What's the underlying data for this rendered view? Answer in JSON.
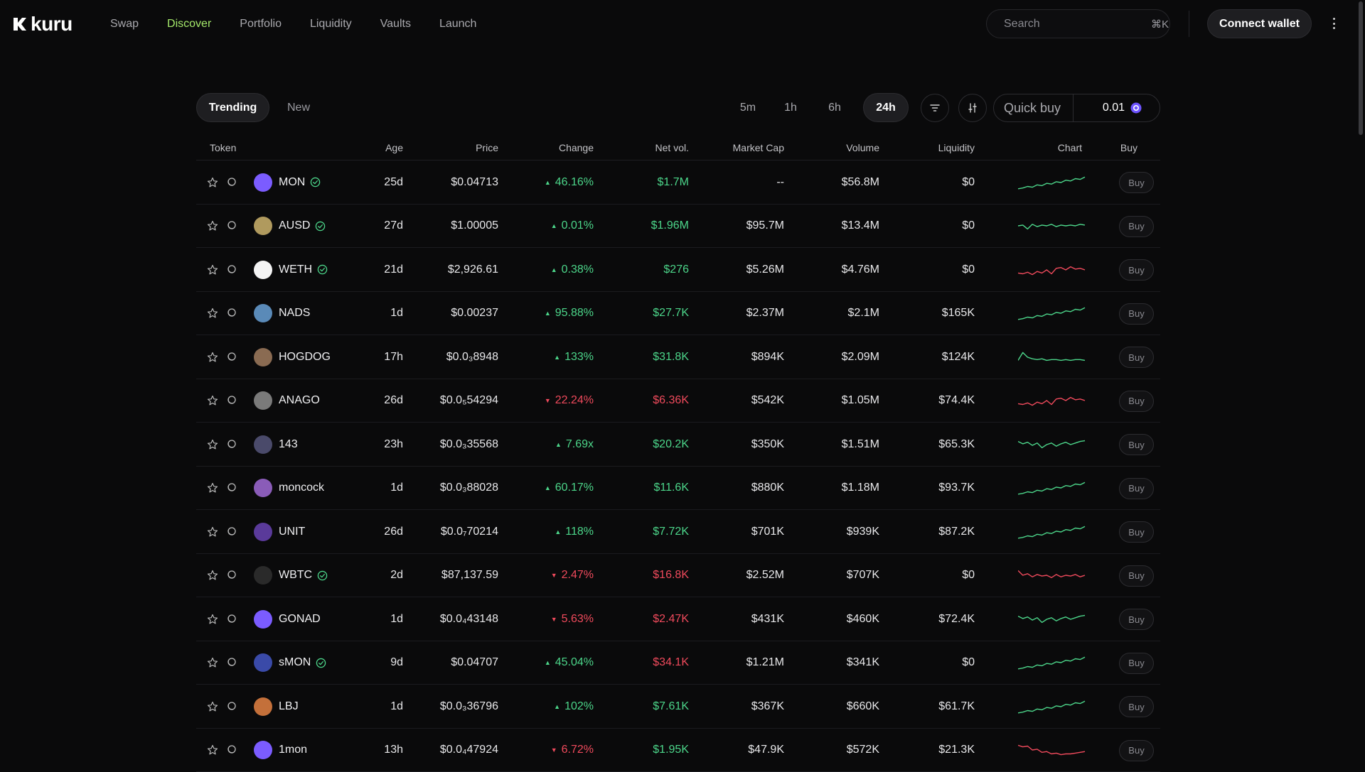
{
  "nav": {
    "logo_text": "kuru",
    "items": [
      "Swap",
      "Discover",
      "Portfolio",
      "Liquidity",
      "Vaults",
      "Launch"
    ],
    "active": "Discover"
  },
  "search": {
    "placeholder": "Search",
    "shortcut": "⌘K"
  },
  "connect_label": "Connect wallet",
  "tabs": {
    "trending": "Trending",
    "new": "New",
    "active": "Trending"
  },
  "timeframes": [
    "5m",
    "1h",
    "6h",
    "24h"
  ],
  "active_timeframe": "24h",
  "quick_buy": {
    "label": "Quick buy",
    "value": "0.01"
  },
  "columns": {
    "token": "Token",
    "age": "Age",
    "price": "Price",
    "change": "Change",
    "netvol": "Net vol.",
    "mcap": "Market Cap",
    "volume": "Volume",
    "liquidity": "Liquidity",
    "chart": "Chart",
    "buy": "Buy"
  },
  "colors": {
    "positive": "#4cd68a",
    "negative": "#f04a5c",
    "accent": "#a4e86a"
  },
  "rows": [
    {
      "name": "MON",
      "verified": true,
      "icon_color": "#7b5cff",
      "icon_name": "monad-logo-icon",
      "age": "25d",
      "price": "$0.04713",
      "change": "46.16%",
      "change_dir": "up",
      "netvol": "$1.7M",
      "netvol_dir": "up",
      "mcap": "--",
      "volume": "$56.8M",
      "liquidity": "$0",
      "trend": "up",
      "buy": "Buy"
    },
    {
      "name": "AUSD",
      "verified": true,
      "icon_color": "#b09a5e",
      "icon_name": "ausd-logo-icon",
      "age": "27d",
      "price": "$1.00005",
      "change": "0.01%",
      "change_dir": "up",
      "netvol": "$1.96M",
      "netvol_dir": "up",
      "mcap": "$95.7M",
      "volume": "$13.4M",
      "liquidity": "$0",
      "trend": "flat",
      "buy": "Buy"
    },
    {
      "name": "WETH",
      "verified": true,
      "icon_color": "#f4f4f4",
      "icon_name": "weth-logo-icon",
      "age": "21d",
      "price": "$2,926.61",
      "change": "0.38%",
      "change_dir": "up",
      "netvol": "$276",
      "netvol_dir": "up",
      "mcap": "$5.26M",
      "volume": "$4.76M",
      "liquidity": "$0",
      "trend": "down",
      "buy": "Buy"
    },
    {
      "name": "NADS",
      "verified": false,
      "icon_color": "#5a8ab8",
      "icon_name": "nads-logo-icon",
      "age": "1d",
      "price": "$0.00237",
      "change": "95.88%",
      "change_dir": "up",
      "netvol": "$27.7K",
      "netvol_dir": "up",
      "mcap": "$2.37M",
      "volume": "$2.1M",
      "liquidity": "$165K",
      "trend": "up",
      "buy": "Buy"
    },
    {
      "name": "HOGDOG",
      "verified": false,
      "icon_color": "#8a6b52",
      "icon_name": "hogdog-logo-icon",
      "age": "17h",
      "price": "$0.0₃8948",
      "change": "133%",
      "change_dir": "up",
      "netvol": "$31.8K",
      "netvol_dir": "up",
      "mcap": "$894K",
      "volume": "$2.09M",
      "liquidity": "$124K",
      "trend": "spike",
      "buy": "Buy"
    },
    {
      "name": "ANAGO",
      "verified": false,
      "icon_color": "#7a7a7a",
      "icon_name": "anago-logo-icon",
      "age": "26d",
      "price": "$0.0₅54294",
      "change": "22.24%",
      "change_dir": "down",
      "netvol": "$6.36K",
      "netvol_dir": "down",
      "mcap": "$542K",
      "volume": "$1.05M",
      "liquidity": "$74.4K",
      "trend": "down",
      "buy": "Buy"
    },
    {
      "name": "143",
      "verified": false,
      "icon_color": "#4a4a6a",
      "icon_name": "143-logo-icon",
      "age": "23h",
      "price": "$0.0₃35568",
      "change": "7.69x",
      "change_dir": "up",
      "netvol": "$20.2K",
      "netvol_dir": "up",
      "mcap": "$350K",
      "volume": "$1.51M",
      "liquidity": "$65.3K",
      "trend": "wave",
      "buy": "Buy"
    },
    {
      "name": "moncock",
      "verified": false,
      "icon_color": "#8a5cb8",
      "icon_name": "moncock-logo-icon",
      "age": "1d",
      "price": "$0.0₃88028",
      "change": "60.17%",
      "change_dir": "up",
      "netvol": "$11.6K",
      "netvol_dir": "up",
      "mcap": "$880K",
      "volume": "$1.18M",
      "liquidity": "$93.7K",
      "trend": "up",
      "buy": "Buy"
    },
    {
      "name": "UNIT",
      "verified": false,
      "icon_color": "#5a3a9a",
      "icon_name": "unit-logo-icon",
      "age": "26d",
      "price": "$0.0₇70214",
      "change": "118%",
      "change_dir": "up",
      "netvol": "$7.72K",
      "netvol_dir": "up",
      "mcap": "$701K",
      "volume": "$939K",
      "liquidity": "$87.2K",
      "trend": "up",
      "buy": "Buy"
    },
    {
      "name": "WBTC",
      "verified": true,
      "icon_color": "#2a2a2a",
      "icon_name": "wbtc-logo-icon",
      "age": "2d",
      "price": "$87,137.59",
      "change": "2.47%",
      "change_dir": "down",
      "netvol": "$16.8K",
      "netvol_dir": "down",
      "mcap": "$2.52M",
      "volume": "$707K",
      "liquidity": "$0",
      "trend": "downflat",
      "buy": "Buy"
    },
    {
      "name": "GONAD",
      "verified": false,
      "icon_color": "#7b5cff",
      "icon_name": "gonad-logo-icon",
      "age": "1d",
      "price": "$0.0₄43148",
      "change": "5.63%",
      "change_dir": "down",
      "netvol": "$2.47K",
      "netvol_dir": "down",
      "mcap": "$431K",
      "volume": "$460K",
      "liquidity": "$72.4K",
      "trend": "wave",
      "buy": "Buy"
    },
    {
      "name": "sMON",
      "verified": true,
      "icon_color": "#3a4aa8",
      "icon_name": "smon-logo-icon",
      "age": "9d",
      "price": "$0.04707",
      "change": "45.04%",
      "change_dir": "up",
      "netvol": "$34.1K",
      "netvol_dir": "down",
      "mcap": "$1.21M",
      "volume": "$341K",
      "liquidity": "$0",
      "trend": "up",
      "buy": "Buy"
    },
    {
      "name": "LBJ",
      "verified": false,
      "icon_color": "#c4703a",
      "icon_name": "lbj-logo-icon",
      "age": "1d",
      "price": "$0.0₃36796",
      "change": "102%",
      "change_dir": "up",
      "netvol": "$7.61K",
      "netvol_dir": "up",
      "mcap": "$367K",
      "volume": "$660K",
      "liquidity": "$61.7K",
      "trend": "up",
      "buy": "Buy"
    },
    {
      "name": "1mon",
      "verified": false,
      "icon_color": "#7b5cff",
      "icon_name": "1mon-logo-icon",
      "age": "13h",
      "price": "$0.0₄47924",
      "change": "6.72%",
      "change_dir": "down",
      "netvol": "$1.95K",
      "netvol_dir": "up",
      "mcap": "$47.9K",
      "volume": "$572K",
      "liquidity": "$21.3K",
      "trend": "downdrop",
      "buy": "Buy"
    }
  ]
}
